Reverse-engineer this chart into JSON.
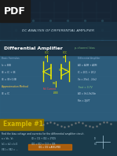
{
  "title_main": "DC ANALYSIS OF DIFFERENTIAL AMPLIFIER",
  "section1": "Differential Amplifier",
  "example_label": "Example #1",
  "example_text": "Find the bias voltage and currents for the differential amplifier circuit.",
  "bg_top_color": "#1a1a2e",
  "bg_mid_color": "#0d4a6b",
  "bg_bottom_color": "#0a3a52",
  "pdf_label": "PDF",
  "pdf_bg": "#1a1a1a",
  "example_bg": "#8b7000",
  "accent_yellow": "#d4b800",
  "text_light": "#c8dde8",
  "text_white": "#ffffff",
  "circuit_yellow": "#e8e800",
  "green_accent": "#00cc88"
}
